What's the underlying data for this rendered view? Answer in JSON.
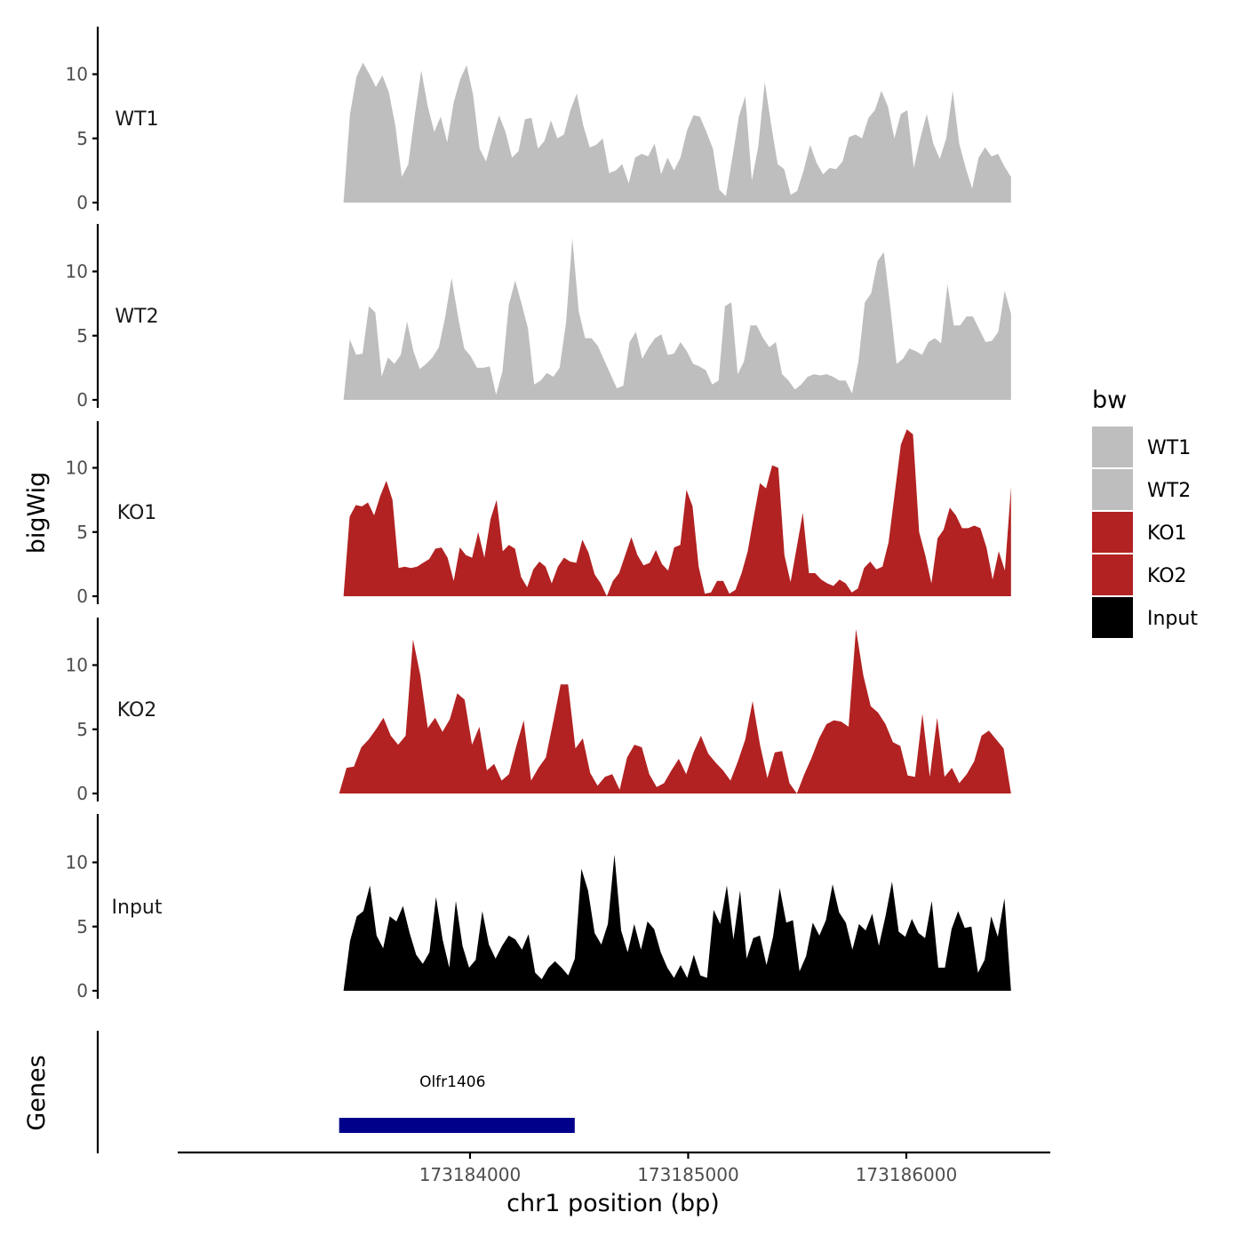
{
  "chart_data": {
    "type": "area",
    "title": "",
    "xlabel": "chr1 position (bp)",
    "ylabel": "bigWig",
    "genes_track_label": "Genes",
    "xlim": [
      173182660,
      173186660
    ],
    "x_ticks": [
      173184000,
      173185000,
      173186000
    ],
    "x_tick_labels": [
      "173184000",
      "173185000",
      "173186000"
    ],
    "ylim": [
      0,
      13.5
    ],
    "y_ticks": [
      0,
      5,
      10
    ],
    "y_tick_labels": [
      "0",
      "5",
      "10"
    ],
    "legend": {
      "title": "bw",
      "placement": "right",
      "entries": [
        {
          "label": "WT1",
          "color": "#BEBEBE"
        },
        {
          "label": "WT2",
          "color": "#BEBEBE"
        },
        {
          "label": "KO1",
          "color": "#B22222"
        },
        {
          "label": "KO2",
          "color": "#B22222"
        },
        {
          "label": "Input",
          "color": "#000000"
        }
      ]
    },
    "series": [
      {
        "name": "WT1",
        "color": "#BEBEBE",
        "x_start": 173183420,
        "x_end": 173186480,
        "values": [
          0,
          6.9,
          9.8,
          10.9,
          10.0,
          9.0,
          9.9,
          8.6,
          6.0,
          2.0,
          3.0,
          6.8,
          10.3,
          7.5,
          5.5,
          6.7,
          4.7,
          7.8,
          9.6,
          10.7,
          8.4,
          4.2,
          3.2,
          5.1,
          6.8,
          5.5,
          3.5,
          4.0,
          6.5,
          6.6,
          4.2,
          4.8,
          6.4,
          5.0,
          5.3,
          7.2,
          8.5,
          6.0,
          4.3,
          4.5,
          5.0,
          2.3,
          2.5,
          3.0,
          1.5,
          3.5,
          3.8,
          3.6,
          4.6,
          2.2,
          3.5,
          2.5,
          3.5,
          5.6,
          6.8,
          6.7,
          5.5,
          4.2,
          1.0,
          0.5,
          3.5,
          6.7,
          8.3,
          1.7,
          4.4,
          9.4,
          6.0,
          3.0,
          2.6,
          0.6,
          0.9,
          2.5,
          4.5,
          3.1,
          2.2,
          2.7,
          2.6,
          3.2,
          5.1,
          5.3,
          5.0,
          6.6,
          7.2,
          8.7,
          7.5,
          5.0,
          6.9,
          7.2,
          2.7,
          5.0,
          6.9,
          4.6,
          3.4,
          5.0,
          8.7,
          4.6,
          2.7,
          1.1,
          3.5,
          4.3,
          3.6,
          3.8,
          2.8,
          2.0
        ]
      },
      {
        "name": "WT2",
        "color": "#BEBEBE",
        "x_start": 173183420,
        "x_end": 173186480,
        "values": [
          0,
          4.7,
          3.5,
          3.6,
          7.3,
          6.8,
          1.8,
          3.3,
          2.8,
          3.5,
          6.1,
          3.8,
          2.4,
          2.8,
          3.3,
          4.1,
          6.5,
          9.5,
          6.5,
          4.0,
          3.4,
          2.5,
          2.5,
          2.6,
          0.4,
          2.2,
          7.4,
          9.3,
          7.5,
          5.6,
          1.2,
          1.5,
          2.1,
          1.8,
          2.5,
          6.0,
          12.6,
          6.9,
          4.8,
          4.8,
          4.2,
          3.1,
          2.0,
          0.9,
          1.1,
          4.5,
          5.3,
          3.2,
          4.1,
          4.8,
          5.1,
          3.5,
          3.6,
          4.5,
          3.8,
          2.8,
          2.6,
          2.3,
          1.2,
          1.5,
          7.3,
          7.6,
          2.0,
          3.0,
          5.8,
          5.8,
          4.8,
          4.1,
          4.5,
          2.0,
          1.5,
          0.8,
          1.2,
          1.8,
          2.0,
          1.9,
          2.0,
          1.8,
          1.5,
          1.5,
          0.5,
          3.0,
          7.6,
          8.3,
          10.8,
          11.5,
          7.3,
          2.8,
          3.2,
          4.0,
          3.8,
          3.5,
          4.5,
          4.8,
          4.4,
          9.0,
          5.8,
          5.8,
          6.5,
          6.5,
          5.5,
          4.5,
          4.6,
          5.3,
          8.5,
          6.7
        ]
      },
      {
        "name": "KO1",
        "color": "#B22222",
        "x_start": 173183420,
        "x_end": 173186480,
        "values": [
          0,
          6.2,
          7.1,
          7.0,
          7.3,
          6.3,
          7.8,
          9.0,
          7.5,
          2.2,
          2.3,
          2.2,
          2.3,
          2.6,
          2.9,
          3.7,
          3.8,
          3.0,
          1.2,
          3.8,
          3.2,
          3.0,
          5.0,
          3.0,
          6.0,
          7.5,
          3.5,
          4.0,
          3.7,
          1.5,
          0.7,
          2.1,
          2.7,
          2.3,
          1.0,
          2.3,
          3.0,
          2.7,
          2.6,
          4.4,
          3.4,
          1.7,
          1.0,
          0.0,
          1.2,
          1.8,
          3.2,
          4.6,
          3.2,
          2.4,
          2.6,
          3.6,
          2.5,
          2.0,
          3.8,
          4.0,
          8.3,
          7.0,
          2.3,
          0.2,
          0.3,
          1.2,
          1.2,
          0.2,
          0.5,
          1.8,
          3.5,
          6.2,
          8.8,
          8.4,
          10.2,
          10.0,
          3.2,
          1.1,
          3.8,
          6.5,
          1.8,
          1.8,
          1.3,
          1.0,
          0.8,
          1.3,
          1.0,
          0.3,
          0.6,
          2.2,
          2.7,
          2.1,
          2.3,
          4.2,
          8.0,
          11.8,
          13.0,
          12.6,
          5.0,
          3.2,
          1.0,
          4.5,
          5.2,
          6.9,
          6.3,
          5.3,
          5.3,
          5.5,
          5.3,
          3.8,
          1.3,
          3.5,
          2.0,
          8.5
        ]
      },
      {
        "name": "KO2",
        "color": "#B22222",
        "x_start": 173183400,
        "x_end": 173186480,
        "values": [
          0,
          2.0,
          2.1,
          3.6,
          4.2,
          5.0,
          5.9,
          4.5,
          3.8,
          4.5,
          12.0,
          9.2,
          5.1,
          5.9,
          4.8,
          5.8,
          7.8,
          7.3,
          3.8,
          5.2,
          1.8,
          2.3,
          1.0,
          1.5,
          3.7,
          5.7,
          1.0,
          2.0,
          2.8,
          5.6,
          8.5,
          8.5,
          3.5,
          4.3,
          1.6,
          0.6,
          1.3,
          1.5,
          0.3,
          2.8,
          3.8,
          3.6,
          1.5,
          0.5,
          0.8,
          1.8,
          2.7,
          1.5,
          3.2,
          4.5,
          3.1,
          2.4,
          1.8,
          1.0,
          2.5,
          4.2,
          7.2,
          3.8,
          1.2,
          3.2,
          3.3,
          0.8,
          0.0,
          1.5,
          2.8,
          4.3,
          5.4,
          5.7,
          5.6,
          5.2,
          12.8,
          9.2,
          6.8,
          6.3,
          5.4,
          4.0,
          3.7,
          1.4,
          1.3,
          6.2,
          1.3,
          5.9,
          1.3,
          2.0,
          0.8,
          1.5,
          2.5,
          4.5,
          4.9,
          4.2,
          3.5,
          0.0
        ]
      },
      {
        "name": "Input",
        "color": "#000000",
        "x_start": 173183420,
        "x_end": 173186480,
        "values": [
          0,
          3.9,
          5.8,
          6.2,
          8.2,
          4.3,
          3.3,
          5.8,
          5.4,
          6.6,
          4.5,
          2.8,
          2.1,
          3.0,
          7.3,
          4.0,
          1.8,
          7.0,
          3.5,
          1.8,
          2.4,
          6.2,
          3.6,
          2.5,
          3.5,
          4.3,
          4.0,
          3.2,
          4.4,
          1.4,
          0.9,
          1.8,
          2.3,
          1.8,
          1.2,
          2.5,
          9.5,
          7.8,
          4.5,
          3.6,
          5.2,
          10.6,
          4.7,
          3.0,
          5.2,
          3.2,
          5.4,
          4.8,
          3.0,
          1.8,
          1.0,
          2.0,
          1.0,
          2.8,
          1.2,
          1.0,
          6.3,
          5.2,
          8.2,
          4.0,
          7.8,
          2.5,
          4.1,
          4.3,
          2.0,
          4.2,
          8.0,
          5.3,
          5.5,
          1.5,
          2.7,
          5.3,
          4.3,
          5.5,
          8.3,
          6.1,
          5.3,
          3.2,
          5.2,
          4.7,
          6.0,
          3.5,
          5.8,
          8.5,
          4.6,
          4.2,
          5.6,
          4.5,
          4.1,
          7.0,
          1.8,
          1.8,
          4.8,
          6.2,
          4.9,
          5.0,
          1.4,
          2.4,
          5.8,
          4.2,
          7.2,
          0
        ]
      }
    ],
    "genes": [
      {
        "name": "Olfr1406",
        "start": 173183400,
        "end": 173184480,
        "color": "#00008B"
      }
    ]
  }
}
